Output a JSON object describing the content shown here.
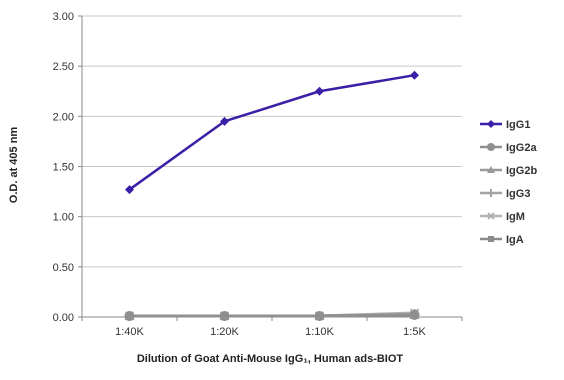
{
  "chart_data": {
    "type": "line",
    "title": "",
    "xlabel": "Dilution of Goat Anti-Mouse IgG₁, Human ads-BIOT",
    "ylabel": "O.D. at 405 nm",
    "categories": [
      "1:40K",
      "1:20K",
      "1:10K",
      "1:5K"
    ],
    "ylim": [
      0,
      3
    ],
    "yticks": [
      "0.00",
      "0.50",
      "1.00",
      "1.50",
      "2.00",
      "2.50",
      "3.00"
    ],
    "grid": true,
    "legend_position": "right",
    "series": [
      {
        "name": "IgG1",
        "values": [
          1.27,
          1.95,
          2.25,
          2.41
        ],
        "color": "#3b1fa6",
        "marker": "diamond"
      },
      {
        "name": "IgG2a",
        "values": [
          0.01,
          0.01,
          0.01,
          0.02
        ],
        "color": "#8f8f8f",
        "marker": "circle"
      },
      {
        "name": "IgG2b",
        "values": [
          0.01,
          0.01,
          0.01,
          0.02
        ],
        "color": "#9a9a9a",
        "marker": "triangle"
      },
      {
        "name": "IgG3",
        "values": [
          0.01,
          0.01,
          0.01,
          0.03
        ],
        "color": "#a3a3a3",
        "marker": "plus"
      },
      {
        "name": "IgM",
        "values": [
          0.01,
          0.01,
          0.01,
          0.04
        ],
        "color": "#b3b3b3",
        "marker": "x"
      },
      {
        "name": "IgA",
        "values": [
          0.01,
          0.01,
          0.01,
          0.03
        ],
        "color": "#8a8a8a",
        "marker": "square"
      }
    ]
  }
}
